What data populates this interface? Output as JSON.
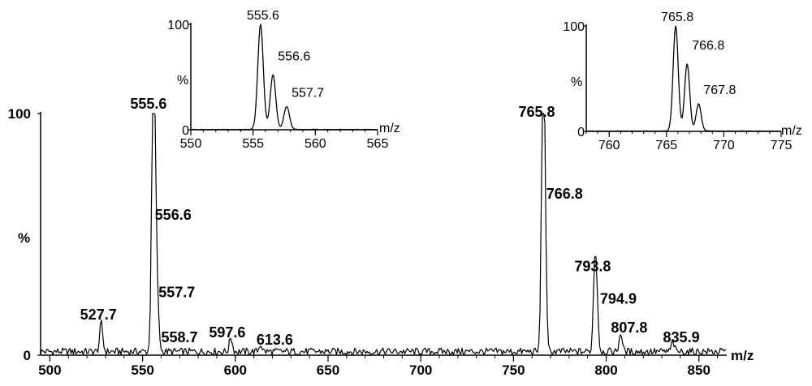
{
  "chart_data": [
    {
      "type": "line",
      "title": "",
      "xlabel": "m/z",
      "ylabel": "%",
      "xlim": [
        495,
        865
      ],
      "ylim": [
        0,
        100
      ],
      "x_ticks": [
        "500",
        "550",
        "600",
        "650",
        "700",
        "750",
        "800",
        "850"
      ],
      "y_ticks": [
        "0",
        "100"
      ],
      "peaks": [
        {
          "x": 527.7,
          "y": 12,
          "label": "527.7"
        },
        {
          "x": 555.6,
          "y": 100,
          "label": "555.6"
        },
        {
          "x": 556.6,
          "y": 52,
          "label": "556.6"
        },
        {
          "x": 557.7,
          "y": 20,
          "label": "557.7"
        },
        {
          "x": 558.7,
          "y": 4,
          "label": "558.7"
        },
        {
          "x": 597.6,
          "y": 6,
          "label": "597.6"
        },
        {
          "x": 613.6,
          "y": 3,
          "label": "613.6"
        },
        {
          "x": 765.8,
          "y": 96,
          "label": "765.8"
        },
        {
          "x": 766.8,
          "y": 60,
          "label": "766.8"
        },
        {
          "x": 793.8,
          "y": 32,
          "label": "793.8"
        },
        {
          "x": 794.9,
          "y": 20,
          "label": "794.9"
        },
        {
          "x": 807.8,
          "y": 8,
          "label": "807.8"
        },
        {
          "x": 835.9,
          "y": 4,
          "label": "835.9"
        }
      ]
    },
    {
      "type": "line",
      "title": "",
      "xlabel": "m/z",
      "ylabel": "%",
      "xlim": [
        550,
        565
      ],
      "ylim": [
        0,
        100
      ],
      "x_ticks": [
        "550",
        "555",
        "560",
        "565"
      ],
      "y_ticks": [
        "0",
        "100"
      ],
      "peaks": [
        {
          "x": 555.6,
          "y": 100,
          "label": "555.6"
        },
        {
          "x": 556.6,
          "y": 52,
          "label": "556.6"
        },
        {
          "x": 557.7,
          "y": 22,
          "label": "557.7"
        }
      ]
    },
    {
      "type": "line",
      "title": "",
      "xlabel": "m/z",
      "ylabel": "%",
      "xlim": [
        758,
        775
      ],
      "ylim": [
        0,
        100
      ],
      "x_ticks": [
        "760",
        "765",
        "770",
        "775"
      ],
      "y_ticks": [
        "0",
        "100"
      ],
      "peaks": [
        {
          "x": 765.8,
          "y": 100,
          "label": "765.8"
        },
        {
          "x": 766.8,
          "y": 64,
          "label": "766.8"
        },
        {
          "x": 767.8,
          "y": 26,
          "label": "767.8"
        }
      ]
    }
  ]
}
